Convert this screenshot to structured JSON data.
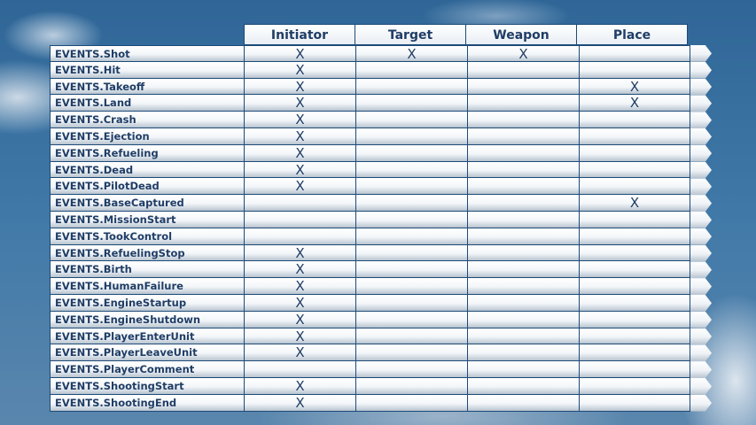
{
  "columns": [
    "Initiator",
    "Target",
    "Weapon",
    "Place"
  ],
  "mark_symbol": "X",
  "rows": [
    {
      "event": "EVENTS.Shot",
      "marks": [
        true,
        true,
        true,
        false
      ]
    },
    {
      "event": "EVENTS.Hit",
      "marks": [
        true,
        false,
        false,
        false
      ]
    },
    {
      "event": "EVENTS.Takeoff",
      "marks": [
        true,
        false,
        false,
        true
      ]
    },
    {
      "event": "EVENTS.Land",
      "marks": [
        true,
        false,
        false,
        true
      ]
    },
    {
      "event": "EVENTS.Crash",
      "marks": [
        true,
        false,
        false,
        false
      ]
    },
    {
      "event": "EVENTS.Ejection",
      "marks": [
        true,
        false,
        false,
        false
      ]
    },
    {
      "event": "EVENTS.Refueling",
      "marks": [
        true,
        false,
        false,
        false
      ]
    },
    {
      "event": "EVENTS.Dead",
      "marks": [
        true,
        false,
        false,
        false
      ]
    },
    {
      "event": "EVENTS.PilotDead",
      "marks": [
        true,
        false,
        false,
        false
      ]
    },
    {
      "event": "EVENTS.BaseCaptured",
      "marks": [
        false,
        false,
        false,
        true
      ]
    },
    {
      "event": "EVENTS.MissionStart",
      "marks": [
        false,
        false,
        false,
        false
      ]
    },
    {
      "event": "EVENTS.TookControl",
      "marks": [
        false,
        false,
        false,
        false
      ]
    },
    {
      "event": "EVENTS.RefuelingStop",
      "marks": [
        true,
        false,
        false,
        false
      ]
    },
    {
      "event": "EVENTS.Birth",
      "marks": [
        true,
        false,
        false,
        false
      ]
    },
    {
      "event": "EVENTS.HumanFailure",
      "marks": [
        true,
        false,
        false,
        false
      ]
    },
    {
      "event": "EVENTS.EngineStartup",
      "marks": [
        true,
        false,
        false,
        false
      ]
    },
    {
      "event": "EVENTS.EngineShutdown",
      "marks": [
        true,
        false,
        false,
        false
      ]
    },
    {
      "event": "EVENTS.PlayerEnterUnit",
      "marks": [
        true,
        false,
        false,
        false
      ]
    },
    {
      "event": "EVENTS.PlayerLeaveUnit",
      "marks": [
        true,
        false,
        false,
        false
      ]
    },
    {
      "event": "EVENTS.PlayerComment",
      "marks": [
        false,
        false,
        false,
        false
      ]
    },
    {
      "event": "EVENTS.ShootingStart",
      "marks": [
        true,
        false,
        false,
        false
      ]
    },
    {
      "event": "EVENTS.ShootingEnd",
      "marks": [
        true,
        false,
        false,
        false
      ]
    }
  ],
  "colors": {
    "border": "#1d4b78",
    "text": "#1f3d66",
    "background": "#3a6f9e"
  }
}
